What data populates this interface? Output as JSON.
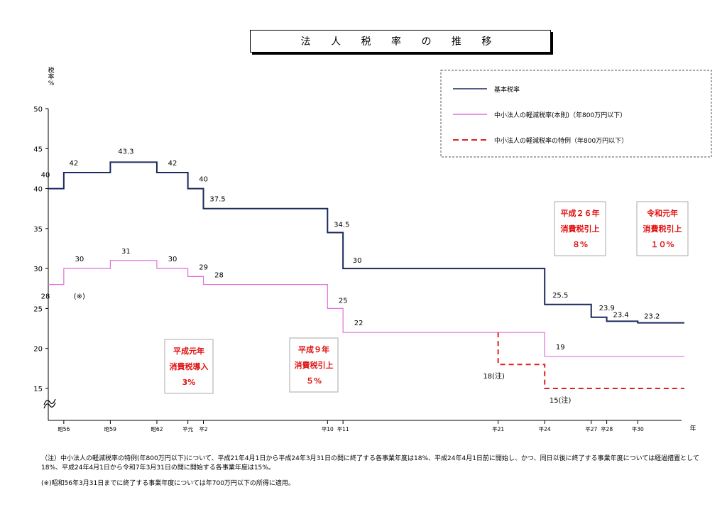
{
  "chart_data": {
    "type": "line",
    "title": "法 人 税 率 の 推 移",
    "ylabel": "税率%",
    "xlabel_unit": "年",
    "ylim": [
      11,
      50
    ],
    "yticks": [
      50,
      45,
      40,
      35,
      30,
      25,
      20,
      15
    ],
    "xticks": [
      {
        "label": "昭56",
        "pos": 56
      },
      {
        "label": "昭59",
        "pos": 59
      },
      {
        "label": "昭62",
        "pos": 62
      },
      {
        "label": "平元",
        "pos": 64
      },
      {
        "label": "平2",
        "pos": 65
      },
      {
        "label": "平10",
        "pos": 73
      },
      {
        "label": "平11",
        "pos": 74
      },
      {
        "label": "平21",
        "pos": 84
      },
      {
        "label": "平24",
        "pos": 87
      },
      {
        "label": "平27",
        "pos": 90
      },
      {
        "label": "平28",
        "pos": 91
      },
      {
        "label": "平30",
        "pos": 93
      }
    ],
    "series": [
      {
        "name": "基本税率",
        "color": "#1a2a5e",
        "style": "solid",
        "steps": [
          [
            55,
            40
          ],
          [
            56,
            42
          ],
          [
            59,
            43.3
          ],
          [
            62,
            42
          ],
          [
            64,
            40
          ],
          [
            65,
            37.5
          ],
          [
            73,
            34.5
          ],
          [
            74,
            30
          ],
          [
            87,
            25.5
          ],
          [
            90,
            23.9
          ],
          [
            91,
            23.4
          ],
          [
            93,
            23.2
          ],
          [
            96,
            23.2
          ]
        ]
      },
      {
        "name": "中小法人の軽減税率(本則)（年800万円以下）",
        "color": "#e070d8",
        "style": "solid",
        "steps": [
          [
            55,
            28
          ],
          [
            56,
            30
          ],
          [
            59,
            31
          ],
          [
            62,
            30
          ],
          [
            64,
            29
          ],
          [
            65,
            28
          ],
          [
            73,
            25
          ],
          [
            74,
            22
          ],
          [
            87,
            19
          ],
          [
            96,
            19
          ]
        ]
      },
      {
        "name": "中小法人の軽減税率の特例（年800万円以下）",
        "color": "#e02020",
        "style": "dashed",
        "steps": [
          [
            84,
            22
          ],
          [
            84,
            18
          ],
          [
            87,
            15
          ],
          [
            96,
            15
          ]
        ]
      }
    ],
    "data_labels": [
      {
        "text": "40",
        "x": 55,
        "y": 40
      },
      {
        "text": "42",
        "x": 56,
        "y": 42
      },
      {
        "text": "43.3",
        "x": 59,
        "y": 43.3
      },
      {
        "text": "42",
        "x": 62,
        "y": 42
      },
      {
        "text": "40",
        "x": 64,
        "y": 40
      },
      {
        "text": "37.5",
        "x": 65,
        "y": 37.5
      },
      {
        "text": "34.5",
        "x": 73,
        "y": 34.5
      },
      {
        "text": "30",
        "x": 74,
        "y": 30
      },
      {
        "text": "25.5",
        "x": 87,
        "y": 25.5
      },
      {
        "text": "23.9",
        "x": 90,
        "y": 23.9
      },
      {
        "text": "23.4",
        "x": 91,
        "y": 23.4
      },
      {
        "text": "23.2",
        "x": 93,
        "y": 23.2
      },
      {
        "text": "28",
        "x": 55,
        "y": 28
      },
      {
        "text": "(※)",
        "x": 56,
        "y": 28
      },
      {
        "text": "30",
        "x": 56,
        "y": 30
      },
      {
        "text": "31",
        "x": 59,
        "y": 31
      },
      {
        "text": "30",
        "x": 62,
        "y": 30
      },
      {
        "text": "29",
        "x": 64,
        "y": 29
      },
      {
        "text": "28",
        "x": 65,
        "y": 28
      },
      {
        "text": "25",
        "x": 73,
        "y": 25
      },
      {
        "text": "22",
        "x": 74,
        "y": 22
      },
      {
        "text": "19",
        "x": 87,
        "y": 19
      },
      {
        "text": "18(注)",
        "x": 84,
        "y": 18
      },
      {
        "text": "15(注)",
        "x": 87,
        "y": 15
      }
    ],
    "annotations": [
      {
        "lines": [
          "平成元年",
          "消費税導入",
          "3%"
        ],
        "x": 64
      },
      {
        "lines": [
          "平成９年",
          "消費税引上",
          "５%"
        ],
        "x": 73
      },
      {
        "lines": [
          "平成２６年",
          "消費税引上",
          "８%"
        ],
        "x": 88
      },
      {
        "lines": [
          "令和元年",
          "消費税引上",
          "１０%"
        ],
        "x": 93
      }
    ],
    "legend_position": "top-right",
    "grid": false
  },
  "notes": {
    "note1_line1": "（注）中小法人の軽減税率の特例(年800万円以下)について、平成21年4月1日から平成24年3月31日の間に終了する各事業年度は18%、平成24年4月1日前に開始し、かつ、同日以後に終了する事業年度については経過措置として",
    "note1_line2": "18%、平成24年4月1日から令和7年3月31日の間に開始する各事業年度は15%。",
    "note2": "(※)昭和56年3月31日までに終了する事業年度については年700万円以下の所得に適用。"
  }
}
